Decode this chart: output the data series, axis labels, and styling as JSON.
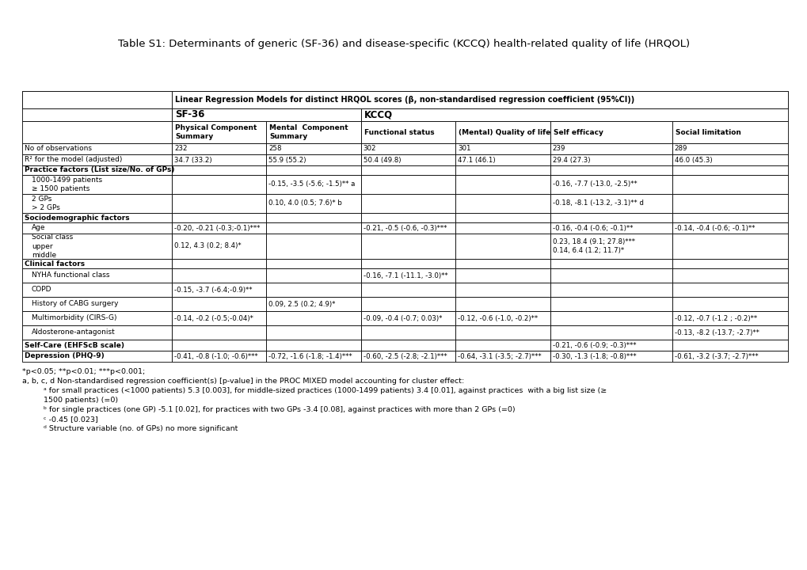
{
  "title": "Table S1: Determinants of generic (SF-36) and disease-specific (KCCQ) health-related quality of life (HRQOL)",
  "header_main": "Linear Regression Models for distinct HRQOL scores (β, non-standardised regression coefficient (95%CI))",
  "sf36_label": "SF-36",
  "kccq_label": "KCCQ",
  "col_headers": [
    "Physical Component\nSummary",
    "Mental  Component\nSummary",
    "Functional status",
    "(Mental) Quality of life",
    "Self efficacy",
    "Social limitation"
  ],
  "rows": [
    {
      "label": "No of observations",
      "indent": 0,
      "bold": false,
      "values": [
        "232",
        "258",
        "302",
        "301",
        "239",
        "289"
      ]
    },
    {
      "label": "R² for the model (adjusted)",
      "indent": 0,
      "bold": false,
      "values": [
        "34.7 (33.2)",
        "55.9 (55.2)",
        "50.4 (49.8)",
        "47.1 (46.1)",
        "29.4 (27.3)",
        "46.0 (45.3)"
      ]
    },
    {
      "label": "Practice factors (List size/No. of GPs)",
      "indent": 0,
      "bold": true,
      "values": [
        "",
        "",
        "",
        "",
        "",
        ""
      ]
    },
    {
      "label": "1000-1499 patients\n≥ 1500 patients",
      "indent": 1,
      "bold": false,
      "values": [
        "",
        "-0.15, -3.5 (-5.6; -1.5)** a",
        "",
        "",
        "-0.16, -7.7 (-13.0, -2.5)**",
        ""
      ]
    },
    {
      "label": "2 GPs\n> 2 GPs",
      "indent": 1,
      "bold": false,
      "values": [
        "",
        "0.10, 4.0 (0.5; 7.6)* b",
        "",
        "",
        "-0.18, -8.1 (-13.2, -3.1)** d",
        ""
      ]
    },
    {
      "label": "Sociodemographic factors",
      "indent": 0,
      "bold": true,
      "values": [
        "",
        "",
        "",
        "",
        "",
        ""
      ]
    },
    {
      "label": "Age",
      "indent": 1,
      "bold": false,
      "values": [
        "-0.20, -0.21 (-0.3;-0.1)***",
        "",
        "-0.21, -0.5 (-0.6, -0.3)***",
        "",
        "-0.16, -0.4 (-0.6; -0.1)**",
        "-0.14, -0.4 (-0.6; -0.1)**"
      ]
    },
    {
      "label": "Social class\nupper\nmiddle",
      "indent": 1,
      "bold": false,
      "values": [
        "0.12, 4.3 (0.2; 8.4)*",
        "",
        "",
        "",
        "0.23, 18.4 (9.1; 27.8)***\n0.14, 6.4 (1.2; 11.7)*",
        ""
      ]
    },
    {
      "label": "Clinical factors",
      "indent": 0,
      "bold": true,
      "values": [
        "",
        "",
        "",
        "",
        "",
        ""
      ]
    },
    {
      "label": "NYHA functional class",
      "indent": 1,
      "bold": false,
      "values": [
        "",
        "",
        "-0.16, -7.1 (-11.1, -3.0)**",
        "",
        "",
        ""
      ]
    },
    {
      "label": "COPD",
      "indent": 1,
      "bold": false,
      "values": [
        "-0.15, -3.7 (-6.4;-0.9)**",
        "",
        "",
        "",
        "",
        ""
      ]
    },
    {
      "label": "History of CABG surgery",
      "indent": 1,
      "bold": false,
      "values": [
        "",
        "0.09, 2.5 (0.2; 4.9)*",
        "",
        "",
        "",
        ""
      ]
    },
    {
      "label": "Multimorbidity (CIRS-G)",
      "indent": 1,
      "bold": false,
      "values": [
        "-0.14, -0.2 (-0.5;-0.04)*",
        "",
        "-0.09, -0.4 (-0.7; 0.03)*",
        "-0.12, -0.6 (-1.0, -0.2)**",
        "",
        "-0.12, -0.7 (-1.2 ; -0.2)**"
      ]
    },
    {
      "label": "Aldosterone-antagonist",
      "indent": 1,
      "bold": false,
      "values": [
        "",
        "",
        "",
        "",
        "",
        "-0.13, -8.2 (-13.7; -2.7)**"
      ]
    },
    {
      "label": "Self-Care (EHFScB scale)",
      "indent": 0,
      "bold": true,
      "values": [
        "",
        "",
        "",
        "",
        "-0.21, -0.6 (-0.9; -0.3)***",
        ""
      ]
    },
    {
      "label": "Depression (PHQ-9)",
      "indent": 0,
      "bold": true,
      "values": [
        "-0.41, -0.8 (-1.0; -0.6)***",
        "-0.72, -1.6 (-1.8; -1.4)***",
        "-0.60, -2.5 (-2.8; -2.1)***",
        "-0.64, -3.1 (-3.5; -2.7)***",
        "-0.30, -1.3 (-1.8; -0.8)***",
        "-0.61, -3.2 (-3.7; -2.7)***"
      ]
    }
  ],
  "footnotes": [
    "*p<0.05; **p<0.01; ***p<0.001;",
    "a, b, c, d Non-standardised regression coefficient(s) [p-value] in the PROC MIXED model accounting for cluster effect:",
    "         ᵃ for small practices (<1000 patients) 5.3 [0.003], for middle-sized practices (1000-1499 patients) 3.4 [0.01], against practices  with a big list size (≥",
    "         1500 patients) (=0)",
    "         ᵇ for single practices (one GP) -5.1 [0.02], for practices with two GPs -3.4 [0.08], against practices with more than 2 GPs (=0)",
    "         ᶜ -0.45 [0.023]",
    "         ᵈ Structure variable (no. of GPs) no more significant"
  ],
  "bg_color": "#ffffff",
  "title_fontsize": 9.5,
  "header_fontsize": 7.0,
  "cell_fontsize": 6.5,
  "footnote_fontsize": 6.8
}
